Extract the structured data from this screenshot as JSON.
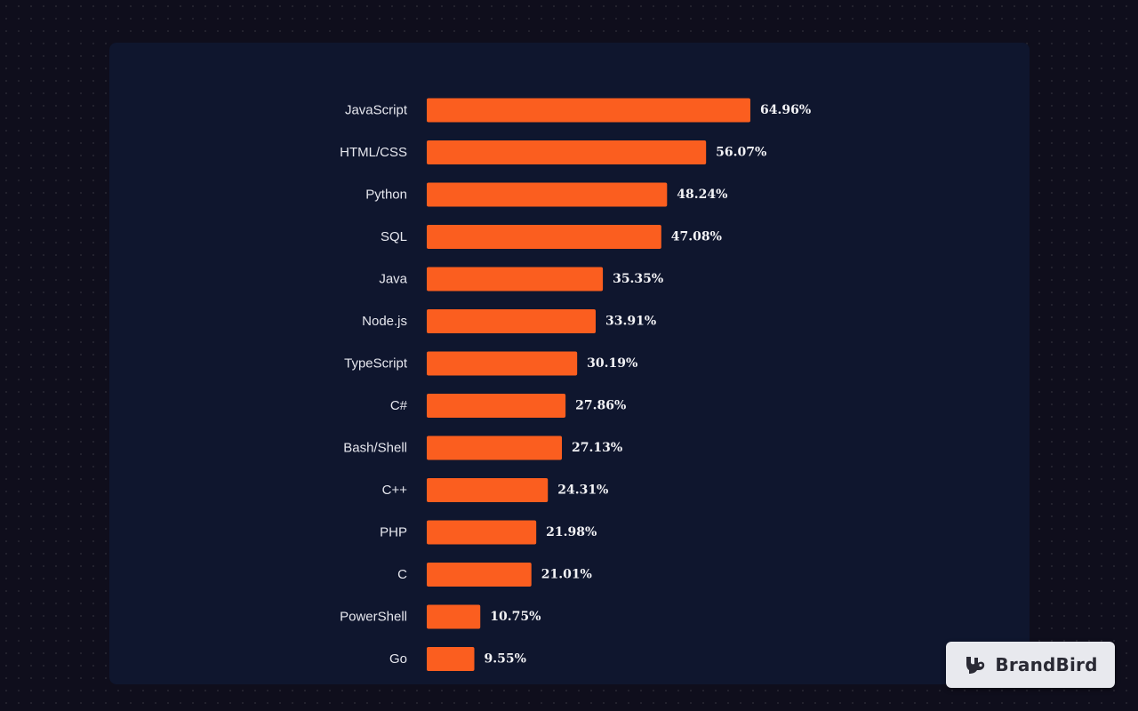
{
  "chart_data": {
    "type": "bar",
    "orientation": "horizontal",
    "categories": [
      "JavaScript",
      "HTML/CSS",
      "Python",
      "SQL",
      "Java",
      "Node.js",
      "TypeScript",
      "C#",
      "Bash/Shell",
      "C++",
      "PHP",
      "C",
      "PowerShell",
      "Go"
    ],
    "values": [
      64.96,
      56.07,
      48.24,
      47.08,
      35.35,
      33.91,
      30.19,
      27.86,
      27.13,
      24.31,
      21.98,
      21.01,
      10.75,
      9.55
    ],
    "value_labels": [
      "64.96%",
      "56.07%",
      "48.24%",
      "47.08%",
      "35.35%",
      "33.91%",
      "30.19%",
      "27.86%",
      "27.13%",
      "24.31%",
      "21.98%",
      "21.01%",
      "10.75%",
      "9.55%"
    ],
    "unit": "%",
    "title": "",
    "xlabel": "",
    "ylabel": "",
    "grid": false,
    "bar_color": "#fb5e1f"
  },
  "brand": {
    "name": "BrandBird",
    "logo_icon": "brandbird-logo-icon"
  },
  "colors": {
    "background": "#0f0e1c",
    "panel": "#0f162e",
    "bar": "#fb5e1f",
    "text": "#e6e7ee",
    "badge": "#e8e9ee"
  }
}
